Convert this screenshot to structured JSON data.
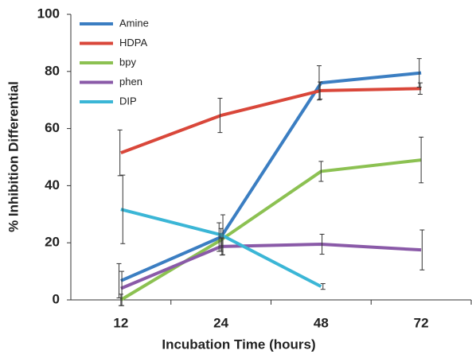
{
  "chart_data": {
    "type": "line",
    "x_label": "Incubation Time (hours)",
    "y_label": "% Inhibition Differential",
    "categories": [
      "12",
      "24",
      "48",
      "72"
    ],
    "ylim": [
      0,
      100
    ],
    "yticks": [
      0,
      20,
      40,
      60,
      80,
      100
    ],
    "grid": false,
    "legend": "upper left",
    "series": [
      {
        "name": "Amine",
        "color": "#3b7ec2",
        "values": [
          6.7,
          22,
          76,
          79.5
        ],
        "errors": [
          6,
          5,
          6,
          5
        ]
      },
      {
        "name": "HDPA",
        "color": "#d9473a",
        "values": [
          51.5,
          64.6,
          73.3,
          74
        ],
        "errors": [
          8,
          6,
          3,
          2
        ]
      },
      {
        "name": "bpy",
        "color": "#8cc152",
        "values": [
          0,
          21,
          45,
          49
        ],
        "errors": [
          2,
          4,
          3.5,
          8
        ]
      },
      {
        "name": "phen",
        "color": "#8a5aa8",
        "values": [
          4,
          18.7,
          19.5,
          17.5
        ],
        "errors": [
          6,
          3,
          3.5,
          7
        ]
      },
      {
        "name": "DIP",
        "color": "#3bb6d6",
        "values": [
          31.7,
          22.8,
          4.7,
          null
        ],
        "errors": [
          12,
          7,
          1,
          null
        ]
      }
    ]
  }
}
